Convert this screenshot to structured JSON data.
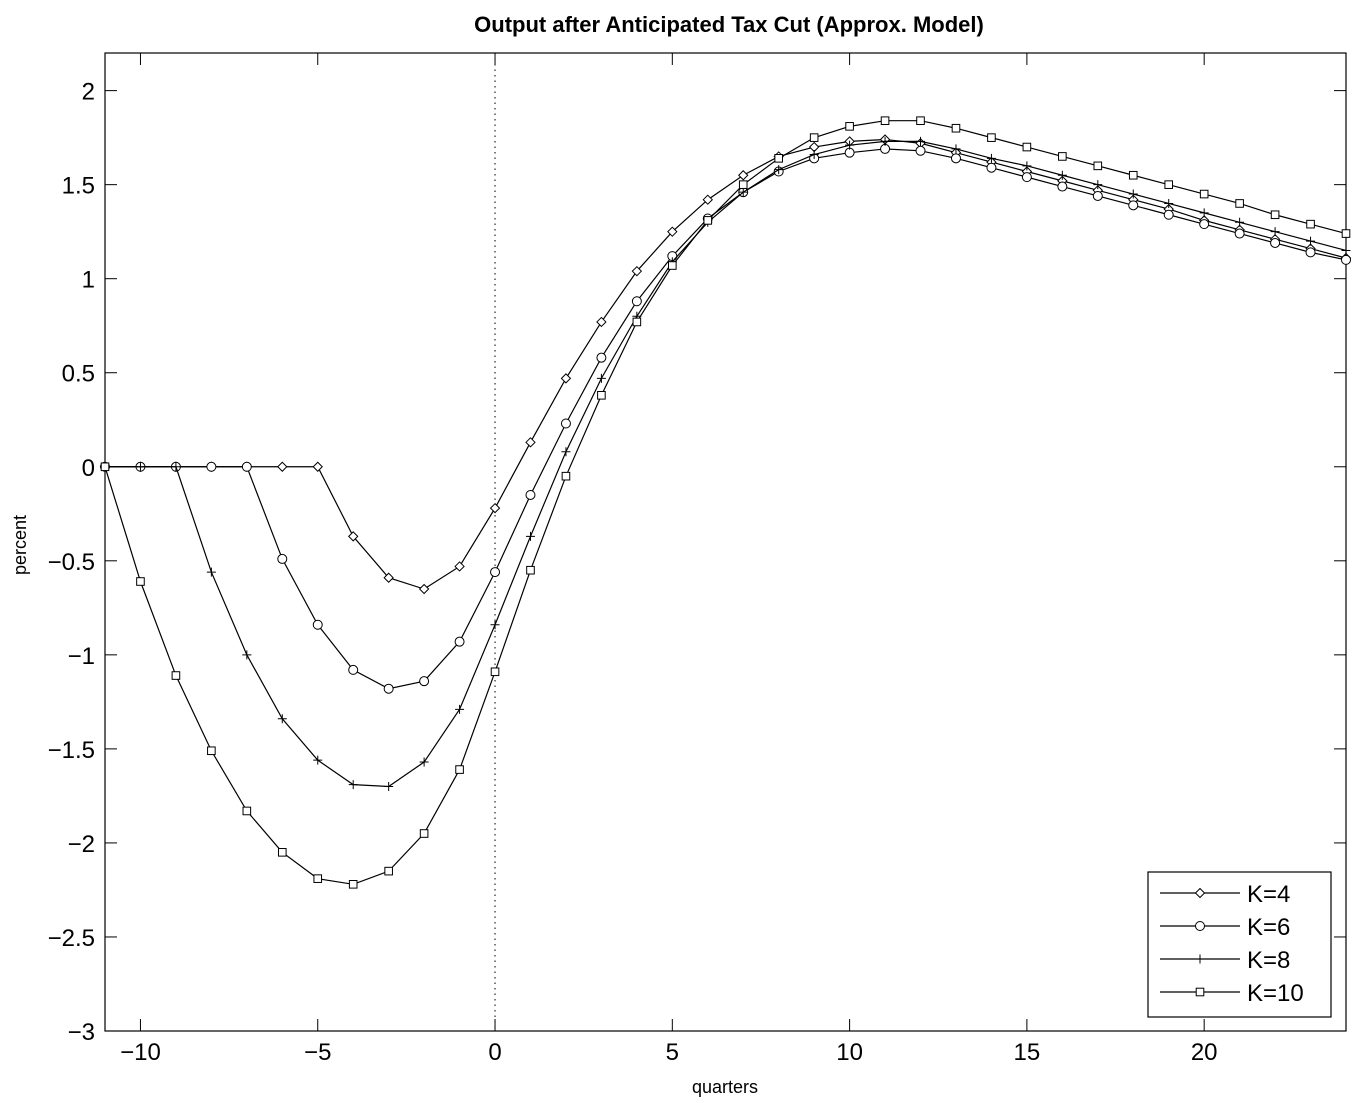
{
  "chart_data": {
    "type": "line",
    "title": "Output after Anticipated Tax Cut (Approx. Model)",
    "xlabel": "quarters",
    "ylabel": "percent",
    "xlim": [
      -11,
      24
    ],
    "ylim": [
      -3,
      2.2
    ],
    "xticks": [
      -10,
      -5,
      0,
      5,
      10,
      15,
      20
    ],
    "yticks": [
      -3,
      -2.5,
      -2,
      -1.5,
      -1,
      -0.5,
      0,
      0.5,
      1,
      1.5,
      2
    ],
    "xtick_labels": [
      "−10",
      "−5",
      "0",
      "5",
      "10",
      "15",
      "20"
    ],
    "ytick_labels": [
      "−3",
      "−2.5",
      "−2",
      "−1.5",
      "−1",
      "−0.5",
      "0",
      "0.5",
      "1",
      "1.5",
      "2"
    ],
    "vline_x": 0,
    "legend_position": "bottom-right",
    "grid": false,
    "x": [
      -11,
      -10,
      -9,
      -8,
      -7,
      -6,
      -5,
      -4,
      -3,
      -2,
      -1,
      0,
      1,
      2,
      3,
      4,
      5,
      6,
      7,
      8,
      9,
      10,
      11,
      12,
      13,
      14,
      15,
      16,
      17,
      18,
      19,
      20,
      21,
      22,
      23,
      24
    ],
    "series": [
      {
        "name": "K=4",
        "marker": "diamond",
        "values": [
          0,
          0,
          0,
          0,
          0,
          0,
          0,
          -0.37,
          -0.59,
          -0.65,
          -0.53,
          -0.22,
          0.13,
          0.47,
          0.77,
          1.04,
          1.25,
          1.42,
          1.55,
          1.65,
          1.7,
          1.73,
          1.74,
          1.72,
          1.67,
          1.62,
          1.57,
          1.52,
          1.47,
          1.42,
          1.37,
          1.31,
          1.26,
          1.21,
          1.16,
          1.11
        ]
      },
      {
        "name": "K=6",
        "marker": "circle",
        "values": [
          0,
          0,
          0,
          0,
          0,
          -0.49,
          -0.84,
          -1.08,
          -1.18,
          -1.14,
          -0.93,
          -0.56,
          -0.15,
          0.23,
          0.58,
          0.88,
          1.12,
          1.32,
          1.46,
          1.57,
          1.64,
          1.67,
          1.69,
          1.68,
          1.64,
          1.59,
          1.54,
          1.49,
          1.44,
          1.39,
          1.34,
          1.29,
          1.24,
          1.19,
          1.14,
          1.1
        ]
      },
      {
        "name": "K=8",
        "marker": "plus",
        "values": [
          0,
          0,
          0,
          -0.56,
          -1.0,
          -1.34,
          -1.56,
          -1.69,
          -1.7,
          -1.57,
          -1.29,
          -0.84,
          -0.37,
          0.08,
          0.47,
          0.8,
          1.09,
          1.3,
          1.46,
          1.58,
          1.66,
          1.71,
          1.73,
          1.73,
          1.69,
          1.64,
          1.6,
          1.55,
          1.5,
          1.45,
          1.4,
          1.35,
          1.3,
          1.25,
          1.2,
          1.15
        ]
      },
      {
        "name": "K=10",
        "marker": "square",
        "values": [
          0,
          -0.61,
          -1.11,
          -1.51,
          -1.83,
          -2.05,
          -2.19,
          -2.22,
          -2.15,
          -1.95,
          -1.61,
          -1.09,
          -0.55,
          -0.05,
          0.38,
          0.77,
          1.07,
          1.31,
          1.5,
          1.64,
          1.75,
          1.81,
          1.84,
          1.84,
          1.8,
          1.75,
          1.7,
          1.65,
          1.6,
          1.55,
          1.5,
          1.45,
          1.4,
          1.34,
          1.29,
          1.24
        ]
      }
    ]
  }
}
